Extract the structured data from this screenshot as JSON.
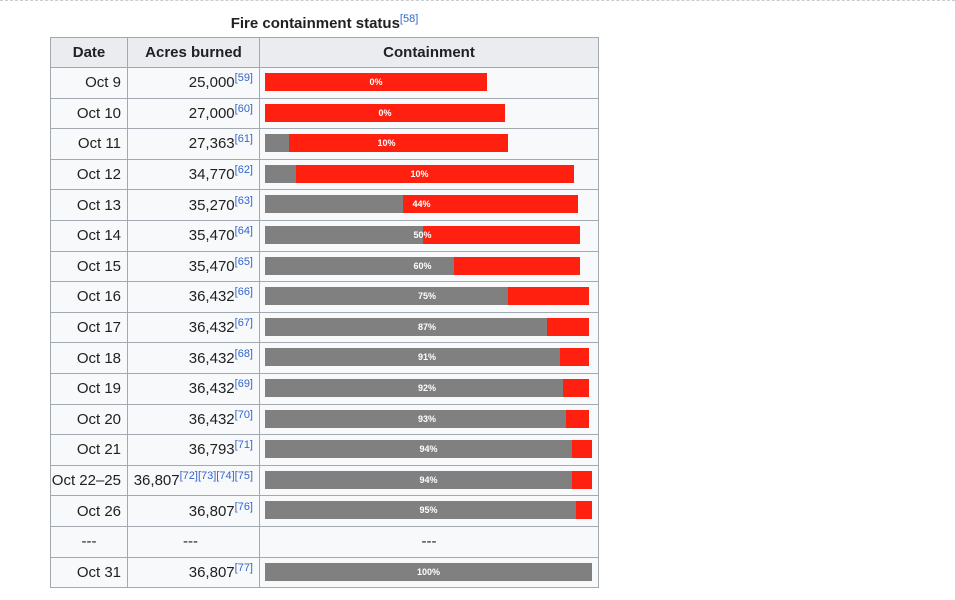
{
  "caption": {
    "title": "Fire containment status",
    "ref": "[58]"
  },
  "headers": {
    "date": "Date",
    "acres": "Acres burned",
    "containment": "Containment"
  },
  "colors": {
    "contained": "#808080",
    "active": "#ff2010",
    "link": "#3366cc"
  },
  "chart_data": {
    "type": "bar",
    "title": "Fire containment status",
    "categories": [
      "Oct 9",
      "Oct 10",
      "Oct 11",
      "Oct 12",
      "Oct 13",
      "Oct 14",
      "Oct 15",
      "Oct 16",
      "Oct 17",
      "Oct 18",
      "Oct 19",
      "Oct 20",
      "Oct 21",
      "Oct 22–25",
      "Oct 26",
      "---",
      "Oct 31"
    ],
    "acres_burned": [
      25000,
      27000,
      27363,
      34770,
      35270,
      35470,
      35470,
      36432,
      36432,
      36432,
      36432,
      36432,
      36793,
      36807,
      36807,
      null,
      36807
    ],
    "containment_percent": [
      0,
      0,
      10,
      10,
      44,
      50,
      60,
      75,
      87,
      91,
      92,
      93,
      94,
      94,
      95,
      null,
      100
    ],
    "bar_scale_acres": [
      0,
      36807
    ]
  },
  "rows": [
    {
      "date": "Oct 9",
      "acres": "25,000",
      "refs": "[59]",
      "pct_label": "0%"
    },
    {
      "date": "Oct 10",
      "acres": "27,000",
      "refs": "[60]",
      "pct_label": "0%"
    },
    {
      "date": "Oct 11",
      "acres": "27,363",
      "refs": "[61]",
      "pct_label": "10%"
    },
    {
      "date": "Oct 12",
      "acres": "34,770",
      "refs": "[62]",
      "pct_label": "10%"
    },
    {
      "date": "Oct 13",
      "acres": "35,270",
      "refs": "[63]",
      "pct_label": "44%"
    },
    {
      "date": "Oct 14",
      "acres": "35,470",
      "refs": "[64]",
      "pct_label": "50%"
    },
    {
      "date": "Oct 15",
      "acres": "35,470",
      "refs": "[65]",
      "pct_label": "60%"
    },
    {
      "date": "Oct 16",
      "acres": "36,432",
      "refs": "[66]",
      "pct_label": "75%"
    },
    {
      "date": "Oct 17",
      "acres": "36,432",
      "refs": "[67]",
      "pct_label": "87%"
    },
    {
      "date": "Oct 18",
      "acres": "36,432",
      "refs": "[68]",
      "pct_label": "91%"
    },
    {
      "date": "Oct 19",
      "acres": "36,432",
      "refs": "[69]",
      "pct_label": "92%"
    },
    {
      "date": "Oct 20",
      "acres": "36,432",
      "refs": "[70]",
      "pct_label": "93%"
    },
    {
      "date": "Oct 21",
      "acres": "36,793",
      "refs": "[71]",
      "pct_label": "94%"
    },
    {
      "date": "Oct 22–25",
      "acres": "36,807",
      "refs": "[72][73][74][75]",
      "pct_label": "94%"
    },
    {
      "date": "Oct 26",
      "acres": "36,807",
      "refs": "[76]",
      "pct_label": "95%"
    },
    {
      "date": "---",
      "acres": "---",
      "refs": "",
      "pct_label": "---"
    },
    {
      "date": "Oct 31",
      "acres": "36,807",
      "refs": "[77]",
      "pct_label": "100%"
    }
  ]
}
